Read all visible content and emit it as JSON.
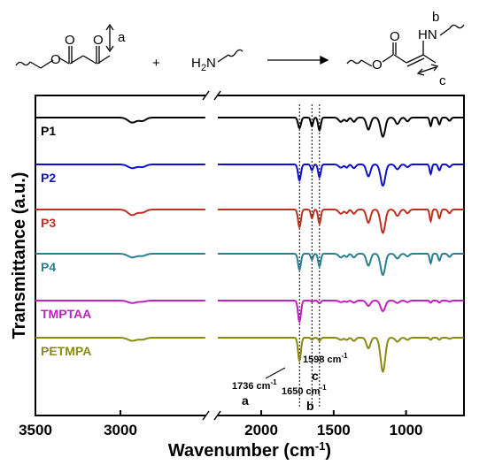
{
  "scheme": {
    "reactant1_atoms": [
      "O",
      "O",
      "O"
    ],
    "reactant1_label": "a",
    "plus": "+",
    "amine_h": "H",
    "amine_sub": "2",
    "amine_n": "N",
    "product_atoms": [
      "O",
      "O"
    ],
    "product_nh": "HN",
    "product_label_b": "b",
    "product_label_c": "c"
  },
  "chart_data": {
    "type": "line",
    "xlabel_main": "Wavenumber (cm",
    "xlabel_sup": "-1",
    "xlabel_end": ")",
    "ylabel": "Transmittance (a.u.)",
    "x_ticks": [
      3500,
      3000,
      2000,
      1500,
      1000
    ],
    "x_tick_labels": [
      "3500",
      "3000",
      "2000",
      "1500",
      "1000"
    ],
    "x_segments": [
      [
        3500,
        2500
      ],
      [
        2300,
        600
      ]
    ],
    "x_reversed": true,
    "grid": false,
    "series": [
      {
        "name": "P1",
        "color": "#000000",
        "offset": 0
      },
      {
        "name": "P2",
        "color": "#1010d0",
        "offset": 1
      },
      {
        "name": "P3",
        "color": "#c03020",
        "offset": 2
      },
      {
        "name": "P4",
        "color": "#2a8090",
        "offset": 3
      },
      {
        "name": "TMPTAA",
        "color": "#c020c0",
        "offset": 4
      },
      {
        "name": "PETMPA",
        "color": "#8a8a10",
        "offset": 5
      }
    ],
    "reference_lines": [
      {
        "x": 1736,
        "label_main": "1736 cm",
        "label_sup": "-1",
        "letter": "a"
      },
      {
        "x": 1650,
        "label_main": "1650 cm",
        "label_sup": "-1",
        "letter": "b"
      },
      {
        "x": 1598,
        "label_main": "1598 cm",
        "label_sup": "-1",
        "letter": "c"
      }
    ]
  }
}
